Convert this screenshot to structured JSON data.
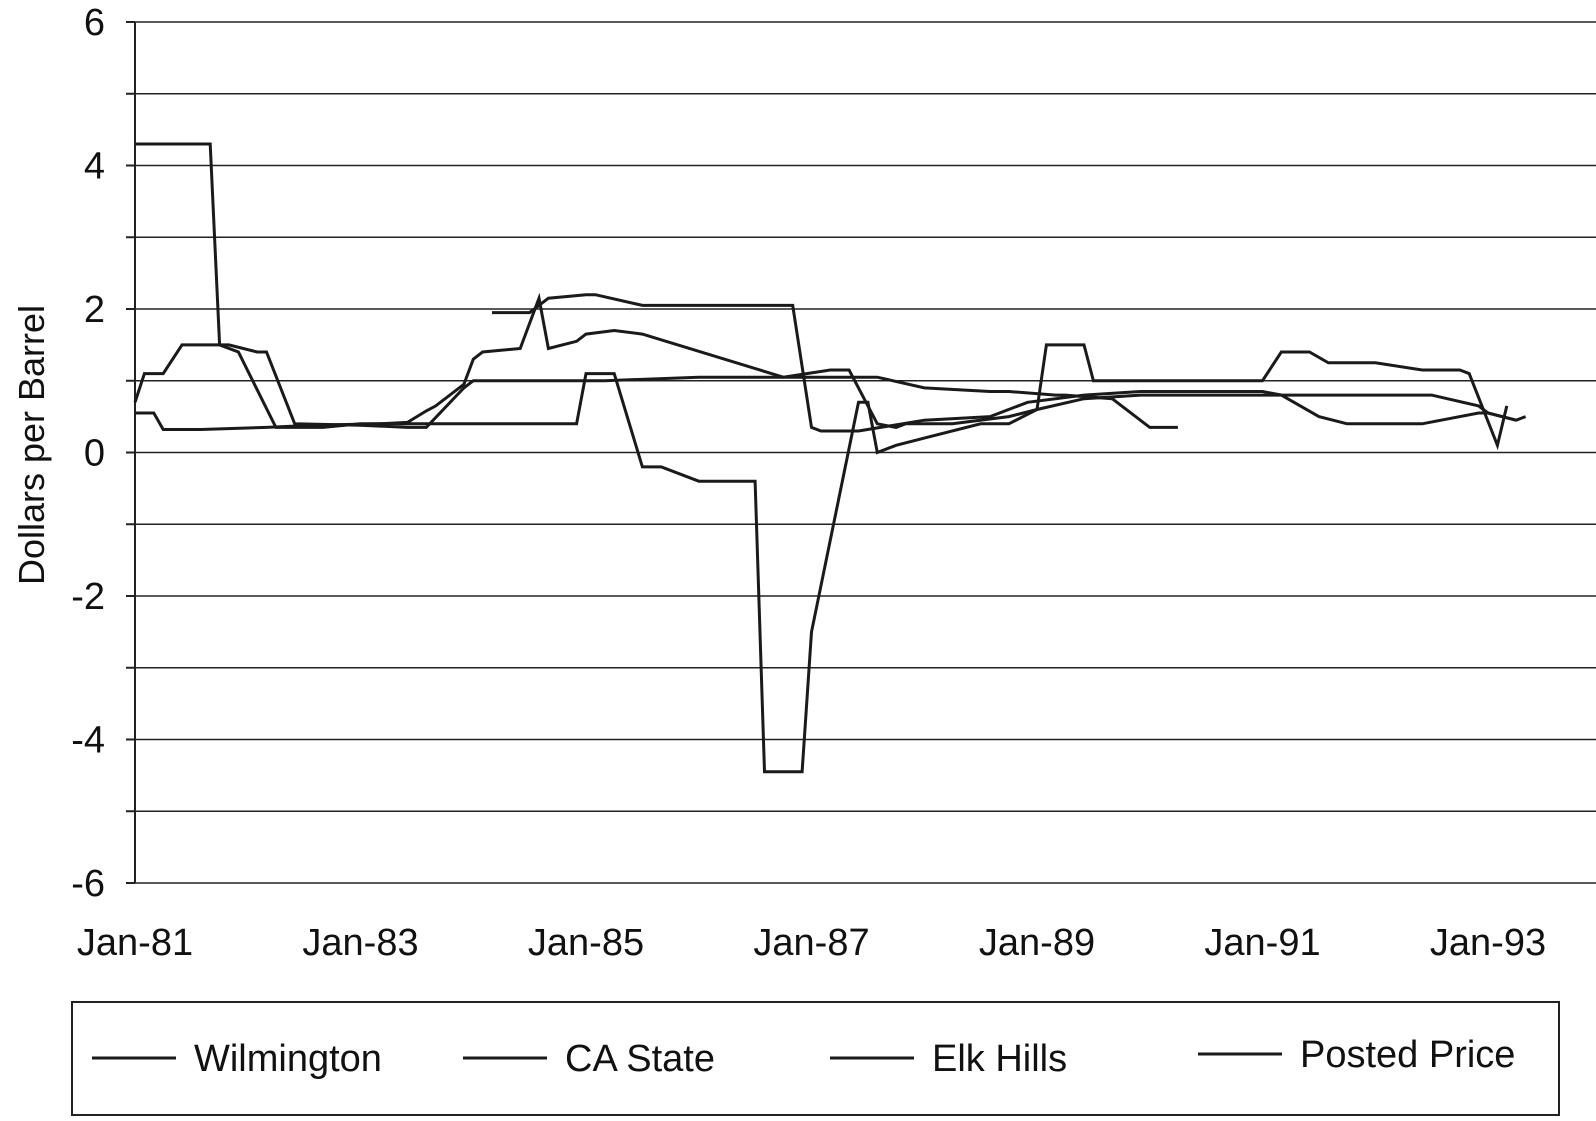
{
  "chart_data": {
    "type": "line",
    "title": "",
    "xlabel": "",
    "ylabel": "Dollars per Barrel",
    "ylim": [
      -6,
      6
    ],
    "y_ticks": [
      "6",
      "4",
      "2",
      "0",
      "-2",
      "-4",
      "-6"
    ],
    "y_gridlines_every": 1,
    "xlim": [
      "Jan-81",
      "Jun-93"
    ],
    "x_ticks": [
      "Jan-81",
      "Jan-83",
      "Jan-85",
      "Jan-87",
      "Jan-89",
      "Jan-91",
      "Jan-93"
    ],
    "grid": "horizontal",
    "legend_position": "bottom",
    "series": [
      {
        "name": "Wilmington",
        "x": [
          "Jan-81",
          "Mar-81",
          "Apr-81",
          "Aug-81",
          "Mar-82",
          "Aug-82",
          "Mar-83",
          "Jun-83",
          "Jul-83",
          "Aug-83",
          "Sep-83",
          "Dec-83",
          "Jan-84",
          "Feb-84",
          "Jun-84",
          "Aug-84",
          "Sep-84",
          "Dec-84",
          "Jan-85",
          "Apr-85",
          "Jul-85",
          "Oct-86",
          "Mar-87",
          "May-87",
          "Aug-87",
          "Oct-87",
          "Nov-87",
          "Apr-88",
          "Oct-88",
          "Jan-89",
          "Jun-89",
          "Dec-89",
          "Jul-92",
          "Dec-92",
          "Jan-93",
          "Apr-93"
        ],
        "y": [
          0.55,
          0.55,
          0.32,
          0.32,
          0.35,
          0.38,
          0.4,
          0.42,
          0.5,
          0.58,
          0.65,
          0.95,
          1.3,
          1.4,
          1.45,
          2.15,
          1.45,
          1.55,
          1.65,
          1.7,
          1.65,
          1.05,
          1.15,
          1.15,
          0.4,
          0.35,
          0.4,
          0.4,
          0.5,
          0.6,
          0.75,
          0.8,
          0.8,
          0.65,
          0.55,
          0.45
        ]
      },
      {
        "name": "CA State",
        "x": [
          "Jan-81",
          "Feb-81",
          "Apr-81",
          "Jun-81",
          "Nov-81",
          "Feb-82",
          "Mar-82",
          "Jun-82",
          "Jan-83",
          "Jun-83",
          "Aug-83",
          "Dec-83",
          "Jan-84",
          "Apr-84",
          "Jun-84",
          "Aug-84",
          "Sep-84",
          "Mar-85",
          "Jan-86",
          "Sep-86",
          "Apr-87",
          "May-87",
          "Aug-87",
          "Jan-88",
          "Aug-88",
          "Oct-88",
          "Mar-89",
          "Apr-89",
          "Sep-89",
          "Jan-90",
          "Apr-90"
        ],
        "y": [
          0.7,
          1.1,
          1.1,
          1.5,
          1.5,
          1.4,
          1.4,
          0.4,
          0.38,
          0.35,
          0.35,
          0.9,
          1.0,
          1.0,
          1.0,
          1.0,
          1.0,
          1.0,
          1.05,
          1.05,
          1.05,
          1.05,
          1.05,
          0.9,
          0.85,
          0.85,
          0.8,
          0.8,
          0.75,
          0.35,
          0.35
        ]
      },
      {
        "name": "Elk Hills",
        "x": [
          "Jan-81",
          "Sep-81",
          "Oct-81",
          "Dec-81",
          "Apr-82",
          "Sep-82",
          "Jan-83",
          "Jul-83",
          "Oct-83",
          "Jan-84",
          "Jul-84",
          "Dec-84",
          "Jan-85",
          "Apr-85",
          "Jul-85",
          "Sep-85",
          "Jan-86",
          "Jul-86",
          "Aug-86",
          "Dec-86",
          "Jan-87",
          "Jun-87",
          "Jul-87",
          "Aug-87",
          "Oct-87",
          "Jan-88",
          "Jul-88",
          "Oct-88",
          "Jan-89",
          "Feb-89",
          "Jun-89",
          "Jul-89",
          "Dec-89",
          "Mar-90",
          "Jan-91",
          "Mar-91",
          "Jun-91",
          "Aug-91",
          "Jan-92",
          "Jun-92",
          "Oct-92",
          "Nov-92",
          "Feb-93",
          "Mar-93"
        ],
        "y": [
          4.3,
          4.3,
          1.5,
          1.4,
          0.35,
          0.35,
          0.4,
          0.4,
          0.4,
          0.4,
          0.4,
          0.4,
          1.1,
          1.1,
          -0.2,
          -0.2,
          -0.4,
          -0.4,
          -4.45,
          -4.45,
          -2.5,
          0.7,
          0.7,
          0.0,
          0.1,
          0.2,
          0.4,
          0.4,
          0.6,
          1.5,
          1.5,
          1.0,
          1.0,
          1.0,
          1.0,
          1.4,
          1.4,
          1.25,
          1.25,
          1.15,
          1.15,
          1.1,
          0.1,
          0.65
        ]
      },
      {
        "name": "Posted Price",
        "x": [
          "Mar-84",
          "Jul-84",
          "Sep-84",
          "Jan-85",
          "Feb-85",
          "Jul-85",
          "Oct-85",
          "Mar-86",
          "Jun-86",
          "Nov-86",
          "Jan-87",
          "Feb-87",
          "Jun-87",
          "Jan-88",
          "Aug-88",
          "Dec-88",
          "Jun-89",
          "Dec-89",
          "Mar-90",
          "Jan-91",
          "Mar-91",
          "Jul-91",
          "Oct-91",
          "Jun-92",
          "Dec-92",
          "Jan-93",
          "Apr-93",
          "May-93"
        ],
        "y": [
          1.95,
          1.95,
          2.15,
          2.2,
          2.2,
          2.05,
          2.05,
          2.05,
          2.05,
          2.05,
          0.35,
          0.3,
          0.3,
          0.45,
          0.5,
          0.7,
          0.8,
          0.85,
          0.85,
          0.85,
          0.8,
          0.5,
          0.4,
          0.4,
          0.55,
          0.55,
          0.45,
          0.5
        ]
      }
    ]
  }
}
